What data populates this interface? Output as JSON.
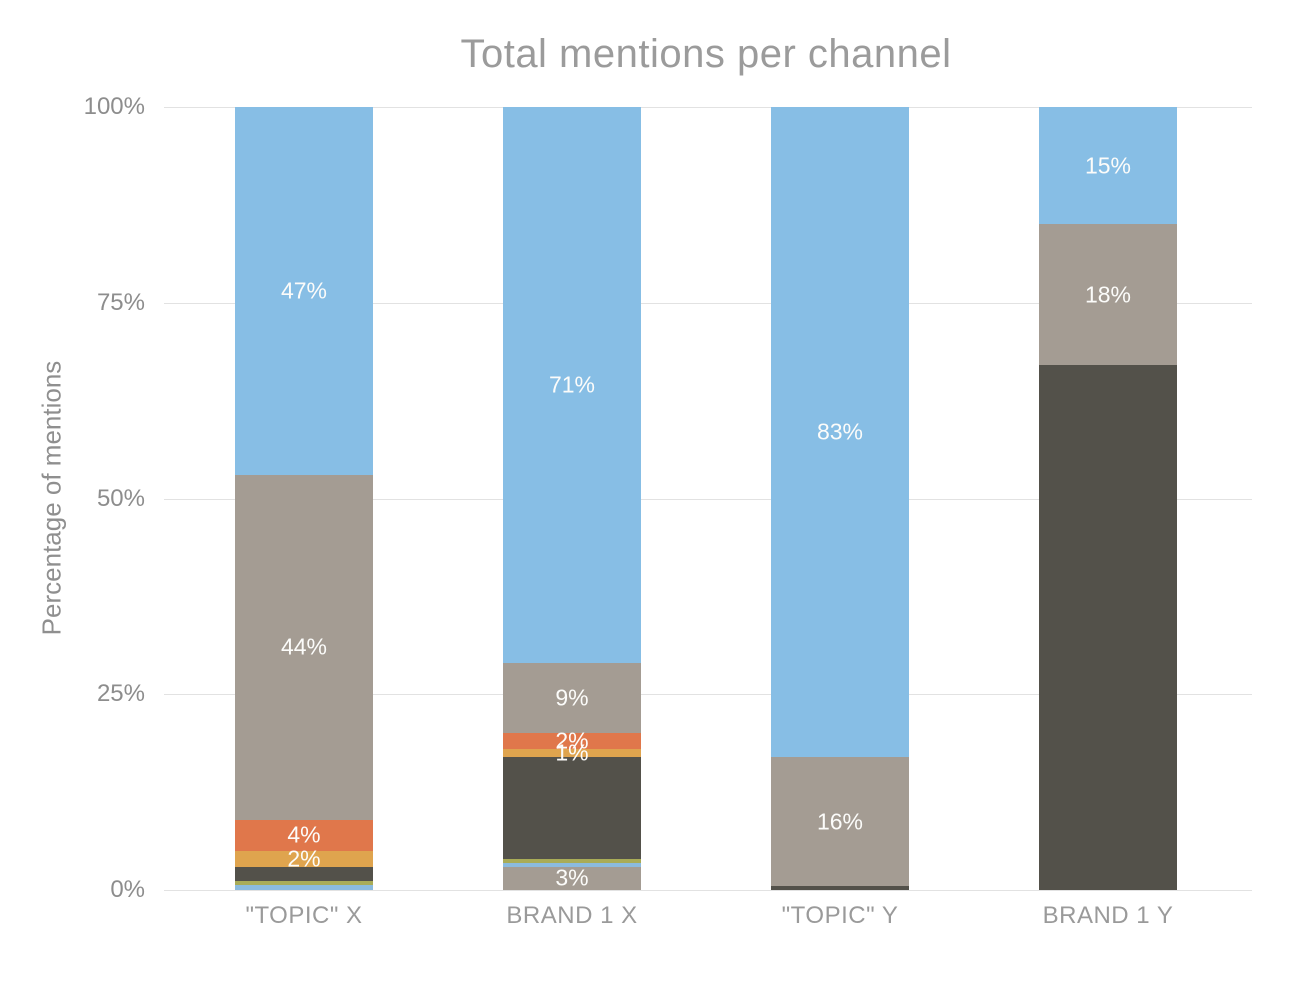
{
  "chart_data": {
    "type": "bar",
    "subtype": "stacked-percentage-column",
    "title": "Total mentions per channel",
    "ylabel": "Percentage of mentions",
    "xlabel": "",
    "ylim": [
      0,
      100
    ],
    "yticks": [
      {
        "label": "100%",
        "value": 100
      },
      {
        "label": "75%",
        "value": 75
      },
      {
        "label": "50%",
        "value": 50
      },
      {
        "label": "25%",
        "value": 25
      },
      {
        "label": "0%",
        "value": 0
      }
    ],
    "grid": true,
    "legend": "none",
    "categories": [
      "\"TOPIC\" X",
      "BRAND 1 X",
      "\"TOPIC\" Y",
      "BRAND 1 Y"
    ],
    "colors": {
      "blue": "#87BEE5",
      "taupe": "#A49C93",
      "dark": "#53514A",
      "orange": "#E0774B",
      "gold": "#DFA44E",
      "olive": "#A9AC57",
      "lightblue": "#8BBBDE"
    },
    "bars": [
      {
        "category": "\"TOPIC\" X",
        "segments_bottom_to_top": [
          {
            "color": "lightblue",
            "value": 0.7,
            "label": ""
          },
          {
            "color": "olive",
            "value": 0.5,
            "label": ""
          },
          {
            "color": "dark",
            "value": 1.8,
            "label": ""
          },
          {
            "color": "gold",
            "value": 2,
            "label": "2%"
          },
          {
            "color": "orange",
            "value": 4,
            "label": "4%"
          },
          {
            "color": "taupe",
            "value": 44,
            "label": "44%"
          },
          {
            "color": "blue",
            "value": 47,
            "label": "47%"
          }
        ]
      },
      {
        "category": "BRAND 1 X",
        "segments_bottom_to_top": [
          {
            "color": "taupe",
            "value": 3,
            "label": "3%"
          },
          {
            "color": "lightblue",
            "value": 0.5,
            "label": ""
          },
          {
            "color": "olive",
            "value": 0.5,
            "label": ""
          },
          {
            "color": "dark",
            "value": 13,
            "label": ""
          },
          {
            "color": "gold",
            "value": 1,
            "label": "1%"
          },
          {
            "color": "orange",
            "value": 2,
            "label": "2%"
          },
          {
            "color": "taupe",
            "value": 9,
            "label": "9%"
          },
          {
            "color": "blue",
            "value": 71,
            "label": "71%"
          }
        ]
      },
      {
        "category": "\"TOPIC\" Y",
        "segments_bottom_to_top": [
          {
            "color": "dark",
            "value": 0.5,
            "label": ""
          },
          {
            "color": "taupe",
            "value": 16.5,
            "label": "16%"
          },
          {
            "color": "blue",
            "value": 83,
            "label": "83%"
          }
        ]
      },
      {
        "category": "BRAND 1 Y",
        "segments_bottom_to_top": [
          {
            "color": "dark",
            "value": 67,
            "label": ""
          },
          {
            "color": "taupe",
            "value": 18,
            "label": "18%"
          },
          {
            "color": "blue",
            "value": 15,
            "label": "15%"
          }
        ]
      }
    ]
  }
}
